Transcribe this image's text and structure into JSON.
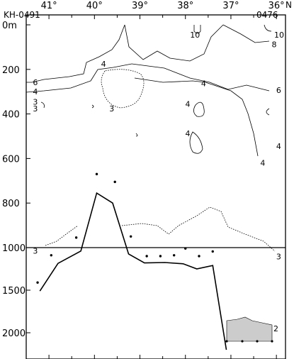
{
  "chart_data": {
    "type": "line",
    "title": "",
    "station_left": "KH-0491",
    "station_right": "0476",
    "xlabel": "",
    "x_unit": "N",
    "xlim": [
      41.5,
      35.8
    ],
    "x_ticks": [
      41,
      40,
      39,
      38,
      37,
      36
    ],
    "x_tick_labels": [
      "41°",
      "40°",
      "39°",
      "38°",
      "37°",
      "36°"
    ],
    "upper_panel": {
      "ylim": [
        0,
        1000
      ],
      "y_ticks": [
        0,
        200,
        400,
        600,
        800,
        1000
      ],
      "y_tick_labels": [
        "0m",
        "200",
        "400",
        "600",
        "800",
        "1000"
      ],
      "contour_labels": [
        {
          "text": "10",
          "x": 37.79,
          "y": 45
        },
        {
          "text": "10",
          "x": 35.94,
          "y": 45
        },
        {
          "text": "8",
          "x": 36.05,
          "y": 88
        },
        {
          "text": "4",
          "x": 39.8,
          "y": 175
        },
        {
          "text": "6",
          "x": 41.3,
          "y": 258
        },
        {
          "text": "4",
          "x": 41.3,
          "y": 300
        },
        {
          "text": "3",
          "x": 41.3,
          "y": 345
        },
        {
          "text": "3",
          "x": 41.3,
          "y": 375
        },
        {
          "text": "3",
          "x": 39.62,
          "y": 376
        },
        {
          "text": "4",
          "x": 37.6,
          "y": 263
        },
        {
          "text": "4",
          "x": 37.95,
          "y": 355
        },
        {
          "text": "4",
          "x": 37.95,
          "y": 488
        },
        {
          "text": "6",
          "x": 35.95,
          "y": 293
        },
        {
          "text": "4",
          "x": 35.95,
          "y": 545
        },
        {
          "text": "4",
          "x": 36.3,
          "y": 620
        },
        {
          "text": "3",
          "x": 41.3,
          "y": 1015
        },
        {
          "text": "3",
          "x": 35.95,
          "y": 1040
        }
      ]
    },
    "lower_panel": {
      "ylim": [
        1000,
        2100
      ],
      "y_ticks": [
        1500,
        2000
      ],
      "y_tick_labels": [
        "1500",
        "2000"
      ],
      "inset_label": "2"
    },
    "bottom_depth": {
      "x": [
        41.2,
        40.8,
        40.3,
        39.95,
        39.6,
        39.25,
        38.9,
        38.45,
        38.05,
        37.75,
        37.4,
        37.1
      ],
      "y": [
        1510,
        1185,
        1040,
        755,
        800,
        1075,
        1180,
        1175,
        1190,
        1250,
        1210,
        2200
      ]
    },
    "sample_points": {
      "x": [
        41.25,
        40.95,
        40.4,
        39.95,
        39.55,
        39.2,
        38.85,
        38.55,
        38.25,
        38.0,
        37.7,
        37.4
      ],
      "y": [
        1410,
        1090,
        955,
        670,
        705,
        950,
        1100,
        1100,
        1090,
        1010,
        1100,
        1045
      ]
    }
  }
}
